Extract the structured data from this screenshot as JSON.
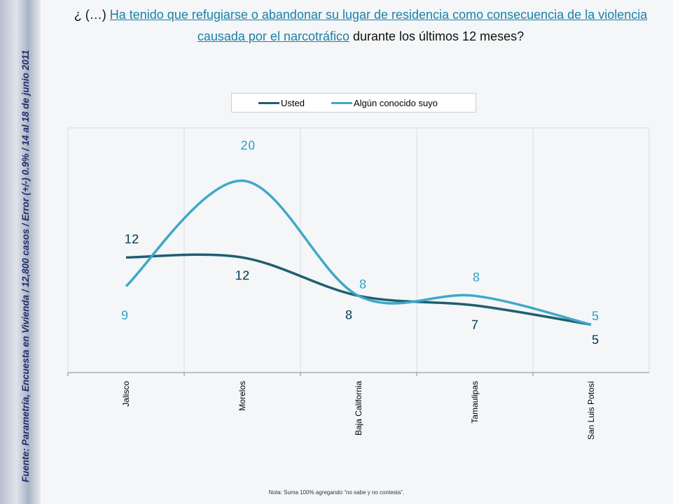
{
  "title": {
    "prefix": "¿ (…) ",
    "underlined": "Ha tenido que refugiarse o abandonar su lugar de residencia como consecuencia de la violencia causada por el narcotráfico",
    "suffix": " durante los últimos 12 meses?"
  },
  "source": "Fuente: Parametría, Encuesta en Vivienda / 12,800 casos / Error (+/-) 0.9% / 14 al 18 de junio 2011",
  "note": "Nota: Suma 100%  agregando “no sabe y no contesta”.",
  "colors": {
    "usted": "#1f5f70",
    "conocido": "#3fa8c8"
  },
  "chart_data": {
    "type": "line",
    "categories": [
      "Jalisco",
      "Morelos",
      "Baja California",
      "Tamaulipas",
      "San Luis Potosí"
    ],
    "series": [
      {
        "name": "Usted",
        "values": [
          12,
          12,
          8,
          7,
          5
        ]
      },
      {
        "name": "Algún conocido suyo",
        "values": [
          9,
          20,
          8,
          8,
          5
        ]
      }
    ],
    "ylim": [
      0,
      25.5
    ],
    "grid": true,
    "legend": "top",
    "smooth": true
  }
}
